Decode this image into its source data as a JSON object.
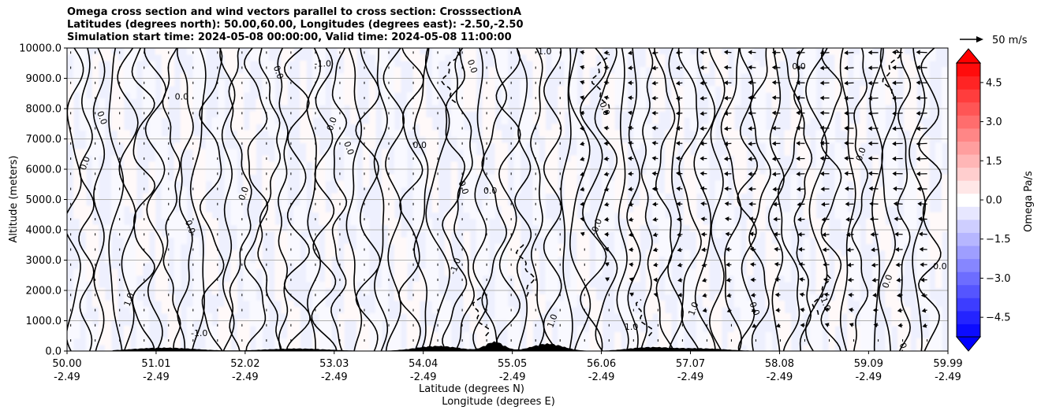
{
  "chart_data": {
    "type": "contour-cross-section",
    "title_lines": [
      "Omega cross section and wind vectors parallel to cross section: CrosssectionA",
      "Latitudes (degrees north): 50.00,60.00, Longitudes (degrees east): -2.50,-2.50",
      "Simulation start time: 2024-05-08 00:00:00, Valid time: 2024-05-08 11:00:00"
    ],
    "ylabel": "Altitude (meters)",
    "xlabel_lat": "Latitude (degrees N)",
    "xlabel_lon": "Longitude (degrees E)",
    "ylim": [
      0,
      10000
    ],
    "xlim": [
      50.0,
      59.99
    ],
    "yticks": [
      {
        "value": 0,
        "label": "0.0"
      },
      {
        "value": 1000,
        "label": "1000.0"
      },
      {
        "value": 2000,
        "label": "2000.0"
      },
      {
        "value": 3000,
        "label": "3000.0"
      },
      {
        "value": 4000,
        "label": "4000.0"
      },
      {
        "value": 5000,
        "label": "5000.0"
      },
      {
        "value": 6000,
        "label": "6000.0"
      },
      {
        "value": 7000,
        "label": "7000.0"
      },
      {
        "value": 8000,
        "label": "8000.0"
      },
      {
        "value": 9000,
        "label": "9000.0"
      },
      {
        "value": 10000,
        "label": "10000.0"
      }
    ],
    "xticks": [
      {
        "value": 50.0,
        "lat": "50.00",
        "lon": "-2.49"
      },
      {
        "value": 51.01,
        "lat": "51.01",
        "lon": "-2.49"
      },
      {
        "value": 52.02,
        "lat": "52.02",
        "lon": "-2.49"
      },
      {
        "value": 53.03,
        "lat": "53.03",
        "lon": "-2.49"
      },
      {
        "value": 54.04,
        "lat": "54.04",
        "lon": "-2.49"
      },
      {
        "value": 55.05,
        "lat": "55.05",
        "lon": "-2.49"
      },
      {
        "value": 56.06,
        "lat": "56.06",
        "lon": "-2.49"
      },
      {
        "value": 57.07,
        "lat": "57.07",
        "lon": "-2.49"
      },
      {
        "value": 58.08,
        "lat": "58.08",
        "lon": "-2.49"
      },
      {
        "value": 59.09,
        "lat": "59.09",
        "lon": "-2.49"
      },
      {
        "value": 59.99,
        "lat": "59.99",
        "lon": "-2.49"
      }
    ],
    "grid": "horizontal",
    "colorbar": {
      "label": "Omega Pa/s",
      "range": [
        -5.25,
        5.25
      ],
      "step": 0.5,
      "ticks": [
        {
          "value": 4.5,
          "label": "4.5"
        },
        {
          "value": 3.0,
          "label": "3.0"
        },
        {
          "value": 1.5,
          "label": "1.5"
        },
        {
          "value": 0.0,
          "label": "0.0"
        },
        {
          "value": -1.5,
          "label": "−1.5"
        },
        {
          "value": -3.0,
          "label": "−3.0"
        },
        {
          "value": -4.5,
          "label": "−4.5"
        }
      ],
      "negative_color": "#0000ff",
      "positive_color": "#ff0000",
      "center_color": "#ffffff"
    },
    "quiver_key": {
      "label": "50 m/s",
      "speed": 50
    },
    "contour_labels": [
      {
        "text": "0.0",
        "x": 50.2,
        "y": 6200
      },
      {
        "text": "0.0",
        "x": 50.4,
        "y": 7700
      },
      {
        "text": "0.0",
        "x": 51.3,
        "y": 8400
      },
      {
        "text": "1.0",
        "x": 50.7,
        "y": 1700
      },
      {
        "text": "0.0",
        "x": 51.4,
        "y": 4100
      },
      {
        "text": "-1.0",
        "x": 51.5,
        "y": 600
      },
      {
        "text": "0.0",
        "x": 52.0,
        "y": 5200
      },
      {
        "text": "0.0",
        "x": 52.4,
        "y": 9200
      },
      {
        "text": "-1.0",
        "x": 52.9,
        "y": 9500
      },
      {
        "text": "0.0",
        "x": 53.0,
        "y": 7500
      },
      {
        "text": "0.0",
        "x": 53.2,
        "y": 6700
      },
      {
        "text": "0.0",
        "x": 54.0,
        "y": 6800
      },
      {
        "text": "-1.0",
        "x": 54.4,
        "y": 2800
      },
      {
        "text": "0.0",
        "x": 54.5,
        "y": 5400
      },
      {
        "text": "0.0",
        "x": 54.8,
        "y": 5300
      },
      {
        "text": "-0.0",
        "x": 56.0,
        "y": 4100
      },
      {
        "text": "0.0",
        "x": 54.6,
        "y": 9400
      },
      {
        "text": "-1.0",
        "x": 55.4,
        "y": 9900
      },
      {
        "text": "1.0",
        "x": 55.5,
        "y": 1000
      },
      {
        "text": "0.0",
        "x": 56.1,
        "y": 8000
      },
      {
        "text": "1.0",
        "x": 56.4,
        "y": 800
      },
      {
        "text": "1.0",
        "x": 57.1,
        "y": 1400
      },
      {
        "text": "0.0",
        "x": 57.8,
        "y": 1400
      },
      {
        "text": "0.0",
        "x": 58.3,
        "y": 9400
      },
      {
        "text": "0.0",
        "x": 59.3,
        "y": 2300
      },
      {
        "text": "-1.0",
        "x": 58.6,
        "y": 1600
      },
      {
        "text": "0.0",
        "x": 59.9,
        "y": 2800
      },
      {
        "text": "0.0",
        "x": 59.0,
        "y": 6500
      },
      {
        "text": "0.0",
        "x": 59.5,
        "y": 50
      }
    ]
  }
}
